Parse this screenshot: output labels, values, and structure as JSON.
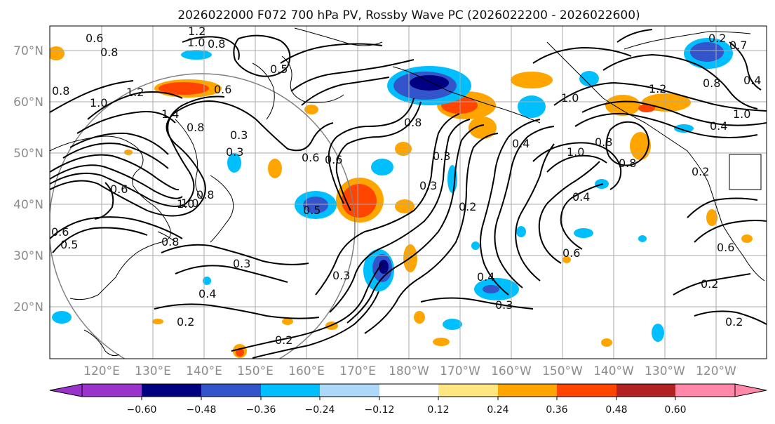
{
  "title": "2026022000 F072 700 hPa PV, Rossby Wave PC (2026022200 - 2026022600)",
  "lat_labels": [
    "70°N",
    "60°N",
    "50°N",
    "40°N",
    "30°N",
    "20°N"
  ],
  "lon_labels": [
    "120°E",
    "130°E",
    "140°E",
    "150°E",
    "160°E",
    "170°E",
    "180°W",
    "170°W",
    "160°W",
    "150°W",
    "140°W",
    "130°W",
    "120°W"
  ],
  "colorbar": {
    "ticks": [
      "−0.60",
      "−0.48",
      "−0.36",
      "−0.24",
      "−0.12",
      "0.12",
      "0.24",
      "0.36",
      "0.48",
      "0.60"
    ],
    "colors": [
      "#9933cc",
      "#000080",
      "#3355cc",
      "#00bfff",
      "#add8f7",
      "#ffffff",
      "#ffe680",
      "#ffa500",
      "#ff4500",
      "#b22222",
      "#ff88aa"
    ]
  },
  "contour_labels": [
    "0.6",
    "0.8",
    "1.2",
    "1.0",
    "0.8",
    "0.5",
    "1.2",
    "0.6",
    "1.0",
    "1.4",
    "0.8",
    "0.3",
    "0.6",
    "0.8",
    "1.0",
    "0.6",
    "0.5",
    "0.3",
    "0.8",
    "0.5",
    "0.3",
    "0.2",
    "0.4",
    "1.0",
    "0.8",
    "0.8",
    "0.4",
    "0.6",
    "0.3",
    "0.4",
    "0.3",
    "0.2",
    "0.2",
    "0.2",
    "0.3",
    "0.4",
    "0.6",
    "1.0",
    "1.2",
    "0.8",
    "0.7",
    "0.8",
    "1.0",
    "0.6",
    "0.2",
    "0.2",
    "0.8",
    "1.0",
    "0.3",
    "0.6",
    "0.4",
    "0.2",
    "0.3",
    "0.4"
  ]
}
